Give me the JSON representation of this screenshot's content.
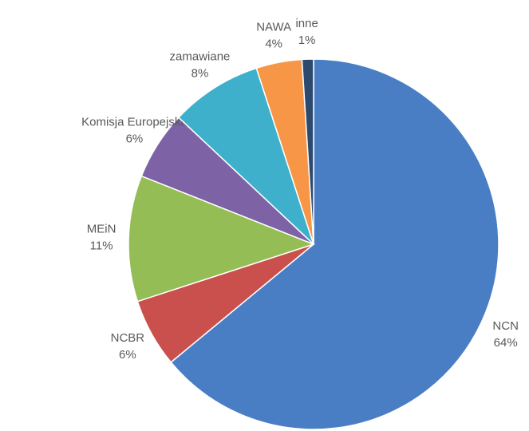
{
  "chart_data": {
    "type": "pie",
    "categories": [
      "NCN",
      "NCBR",
      "MEiN",
      "Komisja Europejska",
      "zamawiane",
      "NAWA",
      "inne"
    ],
    "values": [
      64,
      6,
      11,
      6,
      8,
      4,
      1
    ],
    "value_labels": [
      "64%",
      "6%",
      "11%",
      "6%",
      "8%",
      "4%",
      "1%"
    ],
    "colors": [
      "#4a7ec4",
      "#c9504c",
      "#94bd55",
      "#7e62a6",
      "#3fb0cb",
      "#f79646",
      "#2d4a6e"
    ]
  }
}
